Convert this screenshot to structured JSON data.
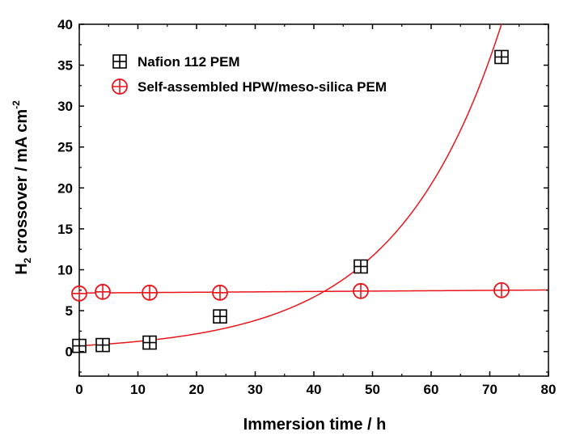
{
  "chart_data": {
    "type": "scatter",
    "xlabel": "Immersion time / h",
    "ylabel": "H",
    "ylabel_sub": "2",
    "ylabel_rest": " crossover / mA cm",
    "ylabel_sup": "-2",
    "xlim": [
      0,
      80
    ],
    "ylim": [
      -3,
      40
    ],
    "x_ticks": [
      0,
      10,
      20,
      30,
      40,
      50,
      60,
      70,
      80
    ],
    "y_ticks": [
      0,
      5,
      10,
      15,
      20,
      25,
      30,
      35,
      40
    ],
    "grid": false,
    "legend_position": "top-left",
    "series": [
      {
        "name": "Nafion 112 PEM",
        "marker": "square-plus",
        "color": "#000000",
        "fit_color": "#e8161b",
        "fit": "exponential",
        "x": [
          0,
          4,
          12,
          24,
          48,
          72
        ],
        "y": [
          0.7,
          0.8,
          1.1,
          4.3,
          10.4,
          36.0
        ]
      },
      {
        "name": "Self-assembled HPW/meso-silica PEM",
        "marker": "circle-plus",
        "color": "#e8161b",
        "fit_color": "#e8161b",
        "fit": "linear",
        "x": [
          0,
          4,
          12,
          24,
          48,
          72
        ],
        "y": [
          7.1,
          7.3,
          7.2,
          7.2,
          7.4,
          7.5
        ]
      }
    ]
  }
}
